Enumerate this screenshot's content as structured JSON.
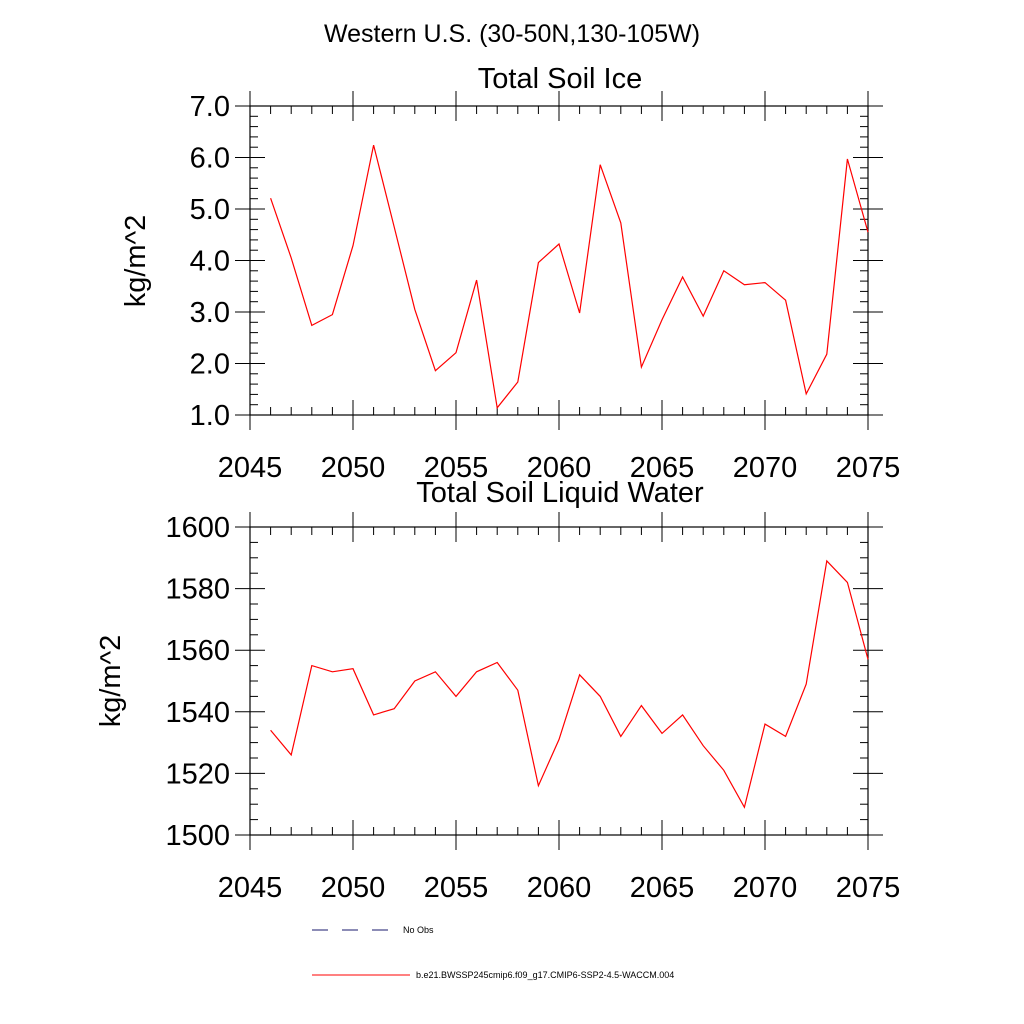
{
  "figure_title": "Western U.S. (30-50N,130-105W)",
  "chart_data": [
    {
      "type": "line",
      "title": "Total Soil Ice",
      "ylabel": "kg/m^2",
      "xlabel": "",
      "xlim": [
        2045,
        2075
      ],
      "ylim": [
        1.0,
        7.0
      ],
      "xticks": [
        2045,
        2050,
        2055,
        2060,
        2065,
        2070,
        2075
      ],
      "yticks": [
        1.0,
        2.0,
        3.0,
        4.0,
        5.0,
        6.0,
        7.0
      ],
      "ytick_labels": [
        "1.0",
        "2.0",
        "3.0",
        "4.0",
        "5.0",
        "6.0",
        "7.0"
      ],
      "x": [
        2046,
        2047,
        2048,
        2049,
        2050,
        2051,
        2052,
        2053,
        2054,
        2055,
        2056,
        2057,
        2058,
        2059,
        2060,
        2061,
        2062,
        2063,
        2064,
        2065,
        2066,
        2067,
        2068,
        2069,
        2070,
        2071,
        2072,
        2073,
        2074,
        2075
      ],
      "series": [
        {
          "color": "#ff0000",
          "values": [
            5.21,
            4.05,
            2.74,
            2.95,
            4.29,
            6.24,
            4.65,
            3.05,
            1.86,
            2.21,
            3.62,
            1.14,
            1.64,
            3.96,
            4.32,
            2.98,
            5.86,
            4.73,
            1.93,
            2.85,
            3.68,
            2.92,
            3.8,
            3.53,
            3.57,
            3.23,
            1.41,
            2.18,
            5.97,
            4.55
          ]
        }
      ]
    },
    {
      "type": "line",
      "title": "Total Soil Liquid Water",
      "ylabel": "kg/m^2",
      "xlabel": "",
      "xlim": [
        2045,
        2075
      ],
      "ylim": [
        1500,
        1600
      ],
      "xticks": [
        2045,
        2050,
        2055,
        2060,
        2065,
        2070,
        2075
      ],
      "yticks": [
        1500,
        1520,
        1540,
        1560,
        1580,
        1600
      ],
      "ytick_labels": [
        "1500",
        "1520",
        "1540",
        "1560",
        "1580",
        "1600"
      ],
      "x": [
        2046,
        2047,
        2048,
        2049,
        2050,
        2051,
        2052,
        2053,
        2054,
        2055,
        2056,
        2057,
        2058,
        2059,
        2060,
        2061,
        2062,
        2063,
        2064,
        2065,
        2066,
        2067,
        2068,
        2069,
        2070,
        2071,
        2072,
        2073,
        2074,
        2075
      ],
      "series": [
        {
          "color": "#ff0000",
          "values": [
            1534,
            1526,
            1555,
            1553,
            1554,
            1539,
            1541,
            1550,
            1553,
            1545,
            1553,
            1556,
            1547,
            1516,
            1531,
            1552,
            1545,
            1532,
            1542,
            1533,
            1539,
            1529,
            1521,
            1509,
            1536,
            1532,
            1549,
            1589,
            1582,
            1557
          ]
        }
      ]
    }
  ],
  "legend": {
    "placement": "bottom",
    "entries": [
      {
        "label": "No Obs",
        "style": "dashed",
        "color": "#1a1a6e"
      },
      {
        "label": "b.e21.BWSSP245cmip6.f09_g17.CMIP6-SSP2-4.5-WACCM.004",
        "style": "solid",
        "color": "#ff0000"
      }
    ]
  }
}
